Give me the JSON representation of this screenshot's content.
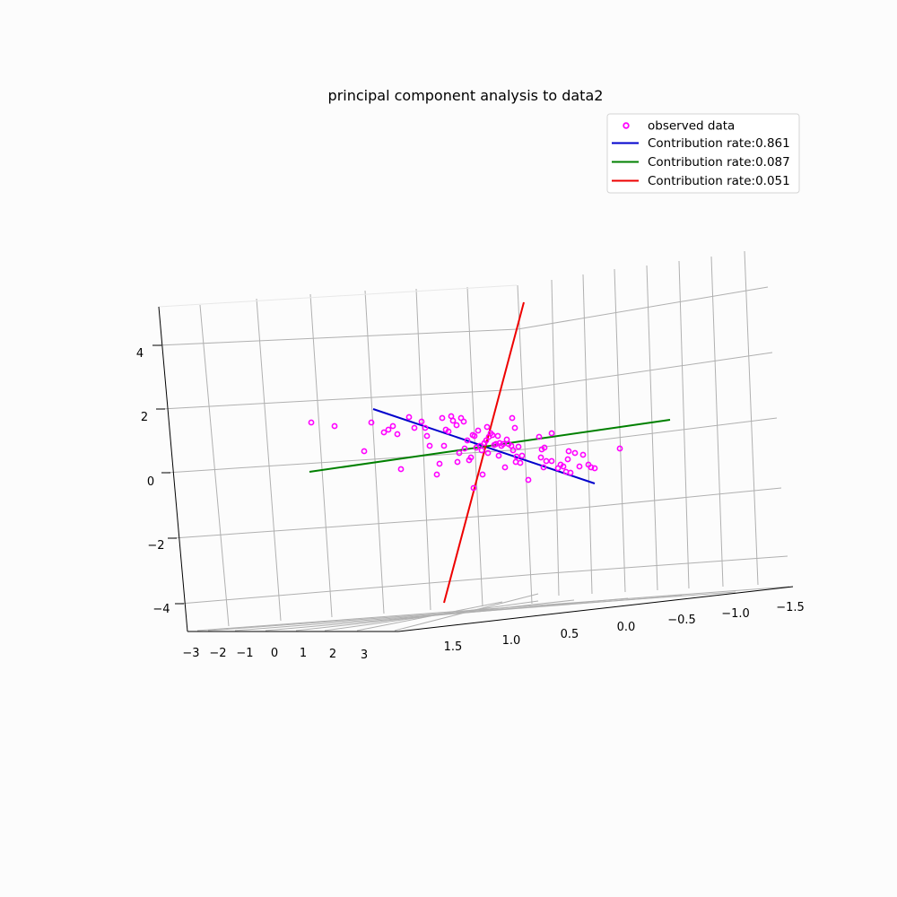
{
  "chart_data": {
    "type": "scatter",
    "projection": "3d",
    "title": "principal component analysis to data2",
    "grid": true,
    "legend_position": "top-right",
    "axes": {
      "x": {
        "ticks": [
          "−3",
          "−2",
          "−1",
          "0",
          "1",
          "2",
          "3"
        ]
      },
      "y": {
        "ticks": [
          "1.5",
          "1.0",
          "0.5",
          "0.0",
          "−0.5",
          "−1.0",
          "−1.5"
        ]
      },
      "z": {
        "ticks": [
          "4",
          "2",
          "0",
          "−2",
          "−4"
        ]
      }
    },
    "series": [
      {
        "name": "observed data",
        "kind": "scatter",
        "color": "#ff00ff",
        "edge_color": "#cc00cc",
        "points": []
      },
      {
        "name": "Contribution rate:0.861",
        "kind": "line",
        "color": "#0000cc"
      },
      {
        "name": "Contribution rate:0.087",
        "kind": "line",
        "color": "#008000"
      },
      {
        "name": "Contribution rate:0.051",
        "kind": "line",
        "color": "#ee0000"
      }
    ]
  }
}
